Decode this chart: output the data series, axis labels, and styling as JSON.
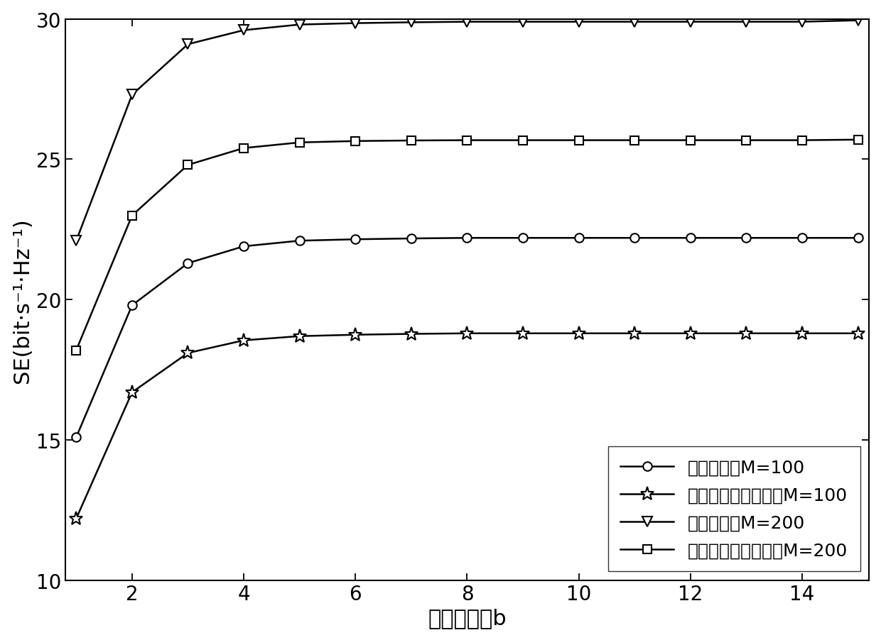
{
  "x": [
    1,
    2,
    3,
    4,
    5,
    6,
    7,
    8,
    9,
    10,
    11,
    12,
    13,
    14,
    15
  ],
  "series": [
    {
      "label": "本发明方案M=100",
      "marker": "o",
      "y": [
        15.1,
        19.8,
        21.3,
        21.9,
        22.1,
        22.15,
        22.18,
        22.2,
        22.2,
        22.2,
        22.2,
        22.2,
        22.2,
        22.2,
        22.2
      ]
    },
    {
      "label": "仅导频长度优化方案M=100",
      "marker": "*",
      "y": [
        12.2,
        16.7,
        18.1,
        18.55,
        18.7,
        18.75,
        18.78,
        18.8,
        18.8,
        18.8,
        18.8,
        18.8,
        18.8,
        18.8,
        18.8
      ]
    },
    {
      "label": "本发明方案M=200",
      "marker": "v",
      "y": [
        22.1,
        27.3,
        29.1,
        29.6,
        29.8,
        29.85,
        29.88,
        29.9,
        29.9,
        29.9,
        29.9,
        29.9,
        29.9,
        29.9,
        29.95
      ]
    },
    {
      "label": "仅导频长度优化方案M=200",
      "marker": "s",
      "y": [
        18.2,
        23.0,
        24.8,
        25.4,
        25.6,
        25.65,
        25.67,
        25.68,
        25.68,
        25.68,
        25.68,
        25.68,
        25.68,
        25.68,
        25.7
      ]
    }
  ],
  "xlabel": "量化比特数b",
  "ylabel": "SE(bit·s⁻¹·Hz⁻¹)",
  "xlim": [
    1,
    15
  ],
  "ylim": [
    10,
    30
  ],
  "xticks": [
    2,
    4,
    6,
    8,
    10,
    12,
    14
  ],
  "yticks": [
    10,
    15,
    20,
    25,
    30
  ],
  "line_color": "#000000",
  "background_color": "#ffffff",
  "legend_loc": "lower right",
  "font_size": 22,
  "tick_font_size": 20,
  "legend_font_size": 18,
  "marker_size": 10,
  "line_width": 1.8
}
